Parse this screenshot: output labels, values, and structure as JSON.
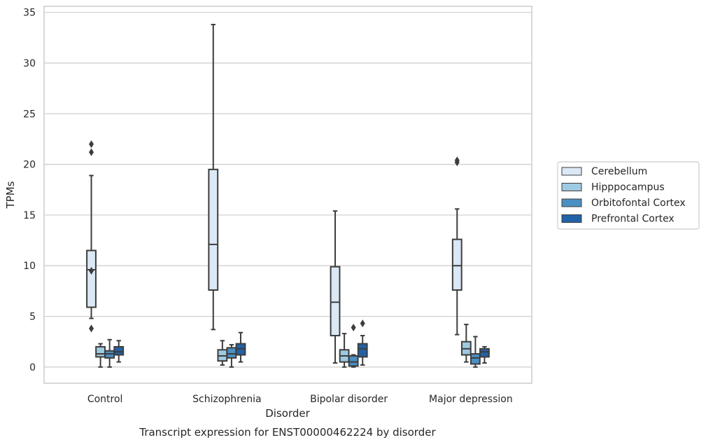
{
  "chart_data": {
    "type": "box",
    "title": "",
    "caption": "Transcript expression for ENST00000462224 by disorder",
    "xlabel": "Disorder",
    "ylabel": "TPMs",
    "ylim": [
      -1.6,
      35.6
    ],
    "yticks": [
      0,
      5,
      10,
      15,
      20,
      25,
      30,
      35
    ],
    "grid": "horizontal",
    "legend_position": "right",
    "categories": [
      "Control",
      "Schizophrenia",
      "Bipolar disorder",
      "Major depression"
    ],
    "series": [
      {
        "name": "Cerebellum",
        "color": "#dbe9f6",
        "boxes": [
          {
            "low": 4.8,
            "q1": 5.9,
            "median": 9.6,
            "q3": 11.5,
            "high": 18.9,
            "outliers": [
              22.0,
              21.2,
              9.5,
              3.8
            ]
          },
          {
            "low": 3.7,
            "q1": 7.6,
            "median": 12.1,
            "q3": 19.5,
            "high": 33.8,
            "outliers": []
          },
          {
            "low": 0.4,
            "q1": 3.1,
            "median": 6.4,
            "q3": 9.9,
            "high": 15.4,
            "outliers": []
          },
          {
            "low": 3.2,
            "q1": 7.6,
            "median": 10.0,
            "q3": 12.6,
            "high": 15.6,
            "outliers": [
              20.4,
              20.2
            ]
          }
        ]
      },
      {
        "name": "Hipppocampus",
        "color": "#9ecae1",
        "boxes": [
          {
            "low": 0.0,
            "q1": 1.0,
            "median": 1.3,
            "q3": 2.0,
            "high": 2.3,
            "outliers": []
          },
          {
            "low": 0.2,
            "q1": 0.6,
            "median": 1.1,
            "q3": 1.7,
            "high": 2.6,
            "outliers": []
          },
          {
            "low": 0.0,
            "q1": 0.5,
            "median": 1.1,
            "q3": 1.7,
            "high": 3.3,
            "outliers": []
          },
          {
            "low": 0.5,
            "q1": 1.2,
            "median": 1.8,
            "q3": 2.5,
            "high": 4.2,
            "outliers": []
          }
        ]
      },
      {
        "name": "Orbitofontal Cortex",
        "color": "#4a90c2",
        "boxes": [
          {
            "low": 0.0,
            "q1": 0.9,
            "median": 1.3,
            "q3": 1.6,
            "high": 2.7,
            "outliers": []
          },
          {
            "low": 0.0,
            "q1": 0.9,
            "median": 1.3,
            "q3": 1.9,
            "high": 2.2,
            "outliers": []
          },
          {
            "low": 0.0,
            "q1": 0.1,
            "median": 0.5,
            "q3": 1.1,
            "high": 1.2,
            "outliers": [
              3.9
            ]
          },
          {
            "low": 0.0,
            "q1": 0.3,
            "median": 0.9,
            "q3": 1.3,
            "high": 3.0,
            "outliers": []
          }
        ]
      },
      {
        "name": "Prefrontal Cortex",
        "color": "#2262a6",
        "boxes": [
          {
            "low": 0.5,
            "q1": 1.2,
            "median": 1.5,
            "q3": 2.0,
            "high": 2.6,
            "outliers": []
          },
          {
            "low": 0.5,
            "q1": 1.2,
            "median": 1.8,
            "q3": 2.3,
            "high": 3.4,
            "outliers": []
          },
          {
            "low": 0.2,
            "q1": 1.0,
            "median": 1.8,
            "q3": 2.3,
            "high": 3.1,
            "outliers": [
              4.3
            ]
          },
          {
            "low": 0.4,
            "q1": 1.0,
            "median": 1.5,
            "q3": 1.8,
            "high": 2.0,
            "outliers": []
          }
        ]
      }
    ]
  }
}
